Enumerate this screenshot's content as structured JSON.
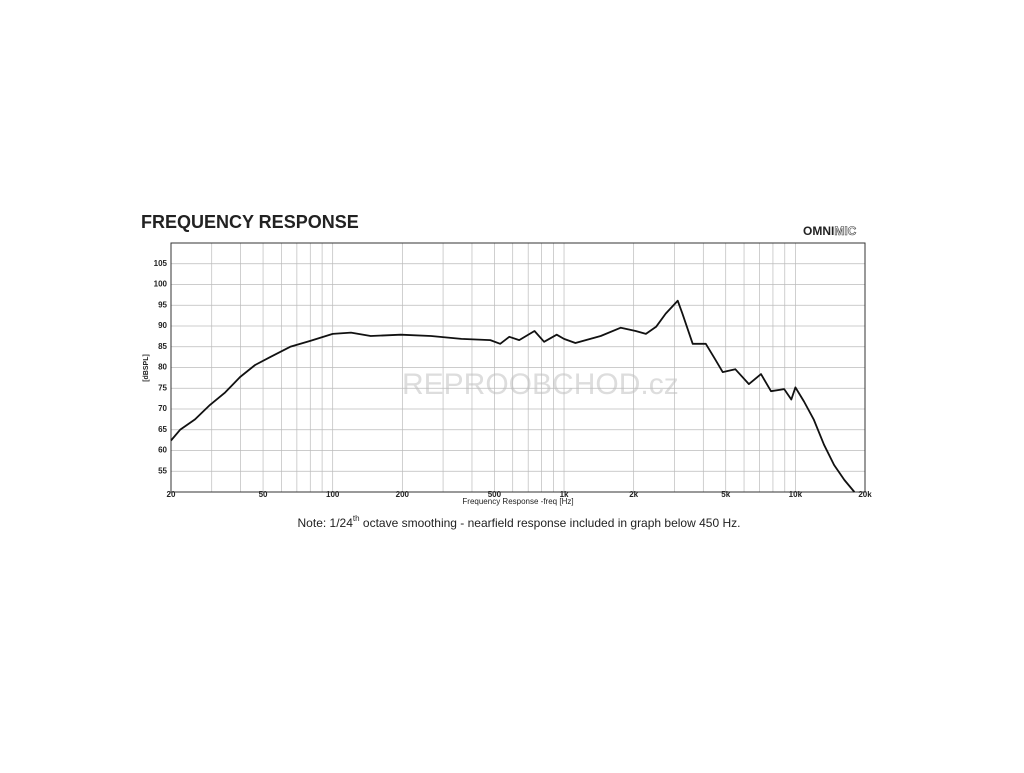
{
  "chart_data": {
    "type": "line",
    "title": "FREQUENCY RESPONSE",
    "logo": [
      "OMNI",
      "MIC"
    ],
    "watermark": [
      "REPROOBCHOD",
      ".cz"
    ],
    "x_label": "Frequency Response -freq [Hz]",
    "y_label": "[dBSPL]",
    "note": [
      "Note: 1/24",
      "th",
      " octave smoothing - nearfield response included in graph below 450 Hz."
    ],
    "log_x": true,
    "grid": true,
    "minor_grid": true,
    "color": "#111111",
    "xlim": [
      20,
      20000
    ],
    "ylim": [
      50,
      110
    ],
    "xticks": [
      20,
      50,
      100,
      200,
      500,
      {
        "value": 1000,
        "label": "1k"
      },
      {
        "value": 2000,
        "label": "2k"
      },
      {
        "value": 5000,
        "label": "5k"
      },
      {
        "value": 10000,
        "label": "10k"
      },
      {
        "value": 20000,
        "label": "20k"
      }
    ],
    "yticks": [
      55,
      60,
      65,
      70,
      75,
      80,
      85,
      90,
      95,
      100,
      105
    ],
    "x": [
      20,
      21.9,
      25.4,
      29.5,
      34.3,
      39.8,
      46.2,
      53.7,
      65.5,
      80,
      100,
      120,
      146,
      197,
      266,
      360,
      480,
      530,
      580,
      640,
      745,
      820,
      930,
      1000,
      1120,
      1440,
      1760,
      2040,
      2260,
      2500,
      2750,
      3100,
      3250,
      3600,
      4100,
      4500,
      4850,
      5500,
      6300,
      7100,
      7850,
      8950,
      9600,
      10000,
      10900,
      12000,
      13300,
      14700,
      16300,
      18000
    ],
    "values": [
      62.4,
      65,
      67.5,
      71,
      74,
      77.7,
      80.6,
      82.5,
      85,
      86.4,
      88.1,
      88.4,
      87.6,
      87.9,
      87.6,
      86.9,
      86.6,
      85.7,
      87.4,
      86.6,
      88.8,
      86.2,
      87.9,
      86.9,
      85.9,
      87.6,
      89.6,
      88.8,
      88.1,
      89.8,
      93,
      96.1,
      93,
      85.7,
      85.7,
      82,
      78.9,
      79.6,
      76,
      78.4,
      74.3,
      74.8,
      72.3,
      75.2,
      71.8,
      67.5,
      61.4,
      56.5,
      52.9,
      50
    ]
  }
}
